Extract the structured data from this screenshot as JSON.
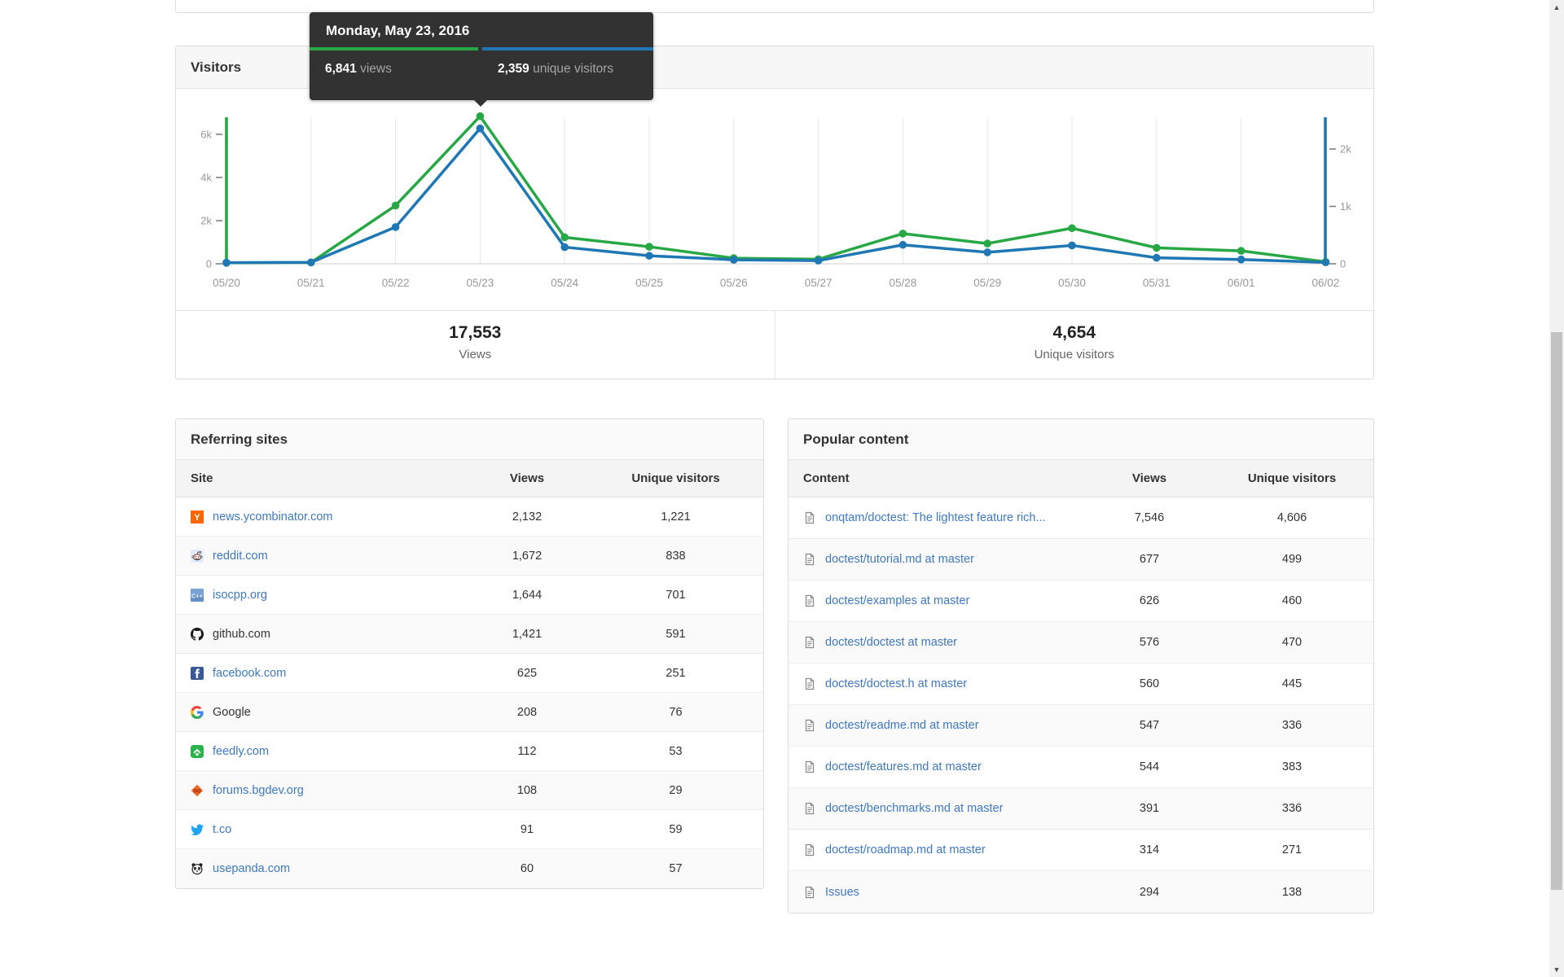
{
  "tooltip": {
    "date": "Monday, May 23, 2016",
    "views_value": "6,841",
    "views_label": "views",
    "unique_value": "2,359",
    "unique_label": "unique visitors"
  },
  "visitors_panel": {
    "title": "Visitors",
    "summary": {
      "views_value": "17,553",
      "views_label": "Views",
      "unique_value": "4,654",
      "unique_label": "Unique visitors"
    }
  },
  "chart_data": {
    "type": "line",
    "title": "Visitors",
    "x": [
      "05/20",
      "05/21",
      "05/22",
      "05/23",
      "05/24",
      "05/25",
      "05/26",
      "05/27",
      "05/28",
      "05/29",
      "05/30",
      "05/31",
      "06/01",
      "06/02"
    ],
    "hover_x": "05/23",
    "series": [
      {
        "name": "views",
        "axis": "left",
        "color": "#28a745",
        "values": [
          45,
          60,
          2700,
          6841,
          1227,
          790,
          260,
          210,
          1400,
          940,
          1650,
          740,
          600,
          90
        ]
      },
      {
        "name": "unique visitors",
        "axis": "right",
        "color": "#1f77b4",
        "values": [
          20,
          25,
          640,
          2359,
          290,
          140,
          70,
          55,
          330,
          200,
          320,
          105,
          75,
          25
        ]
      }
    ],
    "left_axis": {
      "name": "views",
      "tick_values": [
        0,
        2000,
        4000,
        6000
      ],
      "tick_labels": [
        "0",
        "2k",
        "4k",
        "6k"
      ],
      "range": [
        0,
        6900
      ]
    },
    "right_axis": {
      "name": "unique visitors",
      "tick_values": [
        0,
        1000,
        2000
      ],
      "tick_labels": [
        "0",
        "1k",
        "2k"
      ],
      "range": [
        0,
        2550
      ]
    },
    "grid": true,
    "legend": "none",
    "totals": {
      "views": 17553,
      "unique_visitors": 4654
    }
  },
  "referring_sites": {
    "title": "Referring sites",
    "columns": [
      "Site",
      "Views",
      "Unique visitors"
    ],
    "rows": [
      {
        "site": "news.ycombinator.com",
        "views": "2,132",
        "unique": "1,221",
        "icon": "ycombinator-icon",
        "is_link": true
      },
      {
        "site": "reddit.com",
        "views": "1,672",
        "unique": "838",
        "icon": "reddit-icon",
        "is_link": true
      },
      {
        "site": "isocpp.org",
        "views": "1,644",
        "unique": "701",
        "icon": "isocpp-icon",
        "is_link": true
      },
      {
        "site": "github.com",
        "views": "1,421",
        "unique": "591",
        "icon": "github-icon",
        "is_link": false
      },
      {
        "site": "facebook.com",
        "views": "625",
        "unique": "251",
        "icon": "facebook-icon",
        "is_link": true
      },
      {
        "site": "Google",
        "views": "208",
        "unique": "76",
        "icon": "google-icon",
        "is_link": false
      },
      {
        "site": "feedly.com",
        "views": "112",
        "unique": "53",
        "icon": "feedly-icon",
        "is_link": true
      },
      {
        "site": "forums.bgdev.org",
        "views": "108",
        "unique": "29",
        "icon": "bgdev-icon",
        "is_link": true
      },
      {
        "site": "t.co",
        "views": "91",
        "unique": "59",
        "icon": "twitter-icon",
        "is_link": true
      },
      {
        "site": "usepanda.com",
        "views": "60",
        "unique": "57",
        "icon": "panda-icon",
        "is_link": true
      }
    ]
  },
  "popular_content": {
    "title": "Popular content",
    "columns": [
      "Content",
      "Views",
      "Unique visitors"
    ],
    "rows": [
      {
        "content": "onqtam/doctest: The lightest feature rich...",
        "views": "7,546",
        "unique": "4,606"
      },
      {
        "content": "doctest/tutorial.md at master",
        "views": "677",
        "unique": "499"
      },
      {
        "content": "doctest/examples at master",
        "views": "626",
        "unique": "460"
      },
      {
        "content": "doctest/doctest at master",
        "views": "576",
        "unique": "470"
      },
      {
        "content": "doctest/doctest.h at master",
        "views": "560",
        "unique": "445"
      },
      {
        "content": "doctest/readme.md at master",
        "views": "547",
        "unique": "336"
      },
      {
        "content": "doctest/features.md at master",
        "views": "544",
        "unique": "383"
      },
      {
        "content": "doctest/benchmarks.md at master",
        "views": "391",
        "unique": "336"
      },
      {
        "content": "doctest/roadmap.md at master",
        "views": "314",
        "unique": "271"
      },
      {
        "content": "Issues",
        "views": "294",
        "unique": "138"
      }
    ]
  },
  "colors": {
    "views": "#28a745",
    "unique": "#1f77b4",
    "link": "#4078c0"
  }
}
